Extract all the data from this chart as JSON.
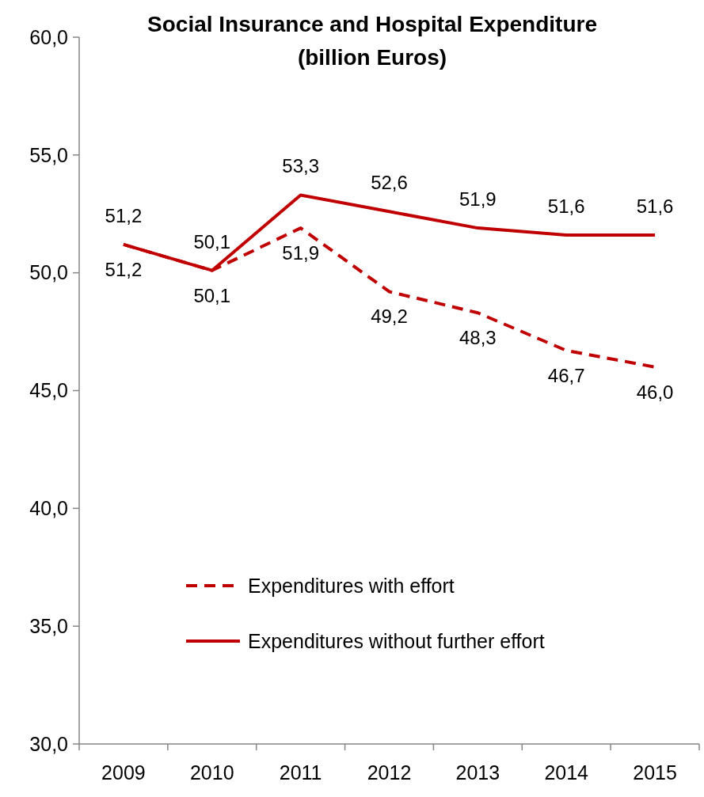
{
  "chart_data": {
    "type": "line",
    "title": "Social Insurance and Hospital Expenditure\n(billion Euros)",
    "categories": [
      "2009",
      "2010",
      "2011",
      "2012",
      "2013",
      "2014",
      "2015"
    ],
    "series": [
      {
        "name": "Expenditures with effort",
        "color": "#c00000",
        "line_style": "dashed",
        "values": [
          51.2,
          50.1,
          51.9,
          49.2,
          48.3,
          46.7,
          46.0
        ],
        "value_labels": [
          "51,2",
          "50,1",
          "51,9",
          "49,2",
          "48,3",
          "46,7",
          "46,0"
        ]
      },
      {
        "name": "Expenditures without further effort",
        "color": "#c00000",
        "line_style": "solid",
        "values": [
          51.2,
          50.1,
          53.3,
          52.6,
          51.9,
          51.6,
          51.6
        ],
        "value_labels": [
          "51,2",
          "50,1",
          "53,3",
          "52,6",
          "51,9",
          "51,6",
          "51,6"
        ]
      }
    ],
    "ylim": [
      30,
      60
    ],
    "yticks": [
      {
        "value": 30,
        "label": "30,0"
      },
      {
        "value": 35,
        "label": "35,0"
      },
      {
        "value": 40,
        "label": "40,0"
      },
      {
        "value": 45,
        "label": "45,0"
      },
      {
        "value": 50,
        "label": "50,0"
      },
      {
        "value": 55,
        "label": "55,0"
      },
      {
        "value": 60,
        "label": "60,0"
      }
    ],
    "grid": false,
    "legend": "bottom",
    "marker": "none"
  }
}
